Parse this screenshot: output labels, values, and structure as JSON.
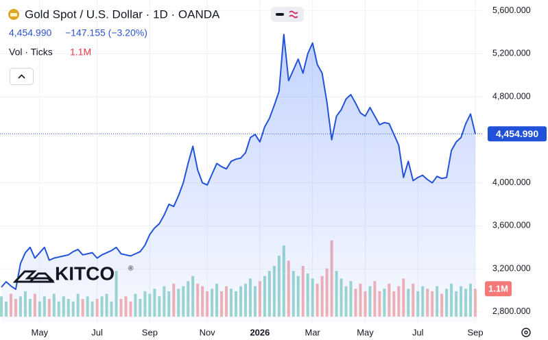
{
  "chart_data": {
    "type": "line",
    "header": {
      "title": "Gold Spot / U.S. Dollar · 1D · OANDA",
      "price": "4,454.990",
      "change": "−147.155 (−3.20%)",
      "volume_label": "Vol · Ticks",
      "volume_value": "1.1M"
    },
    "logo": "KITCO",
    "logo_mark": "®",
    "categories": [
      null,
      null,
      null,
      null,
      null,
      null,
      null,
      null,
      "May",
      null,
      null,
      null,
      null,
      null,
      null,
      null,
      null,
      null,
      null,
      null,
      "Jul",
      null,
      null,
      null,
      null,
      null,
      null,
      null,
      null,
      null,
      null,
      "Sep",
      null,
      null,
      null,
      null,
      null,
      null,
      null,
      null,
      null,
      null,
      null,
      "Nov",
      null,
      null,
      null,
      null,
      null,
      null,
      null,
      null,
      null,
      null,
      "2026",
      null,
      null,
      null,
      null,
      null,
      null,
      null,
      null,
      null,
      null,
      "Mar",
      null,
      null,
      null,
      null,
      null,
      null,
      null,
      null,
      null,
      null,
      "May",
      null,
      null,
      null,
      null,
      null,
      null,
      null,
      null,
      null,
      null,
      "Jul",
      null,
      null,
      null,
      null,
      null,
      null,
      null,
      null,
      null,
      null,
      null,
      "Sep"
    ],
    "series": [
      {
        "color": "#2151d9",
        "values": [
          3030,
          3080,
          3040,
          3010,
          3250,
          3350,
          3400,
          3300,
          3350,
          3400,
          3280,
          3300,
          3310,
          3320,
          3330,
          3360,
          3380,
          3330,
          3340,
          3350,
          3300,
          3330,
          3350,
          3370,
          3400,
          3340,
          3330,
          3320,
          3340,
          3360,
          3420,
          3520,
          3580,
          3620,
          3700,
          3800,
          3780,
          3880,
          4000,
          4180,
          4340,
          4120,
          4000,
          3980,
          4080,
          4180,
          4150,
          4130,
          4200,
          4220,
          4230,
          4280,
          4420,
          4450,
          4380,
          4520,
          4600,
          4720,
          4850,
          5380,
          4950,
          5050,
          5150,
          5020,
          5200,
          5300,
          5100,
          5020,
          4750,
          4400,
          4620,
          4680,
          4780,
          4820,
          4740,
          4650,
          4620,
          4700,
          4620,
          4540,
          4560,
          4550,
          4450,
          4350,
          4050,
          4200,
          4020,
          4050,
          4070,
          4030,
          4000,
          4060,
          4040,
          4050,
          4300,
          4380,
          4420,
          4550,
          4640,
          4454.99
        ]
      }
    ],
    "volume": {
      "axis": "y2",
      "up_color": "#9fd8cf",
      "down_color": "#f6b3b3",
      "values": [
        0.8,
        0.6,
        0.9,
        0.7,
        0.8,
        1.0,
        0.7,
        0.9,
        0.6,
        0.8,
        0.7,
        0.9,
        0.6,
        0.8,
        0.7,
        0.6,
        0.9,
        0.7,
        0.8,
        0.6,
        0.7,
        0.8,
        0.9,
        0.6,
        1.8,
        0.7,
        0.8,
        0.6,
        0.9,
        0.7,
        1.0,
        0.9,
        1.1,
        0.8,
        1.2,
        1.0,
        1.3,
        1.1,
        1.2,
        1.4,
        1.6,
        1.3,
        1.2,
        1.0,
        1.1,
        1.3,
        1.0,
        1.2,
        1.1,
        1.0,
        1.2,
        1.3,
        1.5,
        1.2,
        1.4,
        1.6,
        1.8,
        2.0,
        2.4,
        2.8,
        2.2,
        1.8,
        1.6,
        2.0,
        1.7,
        1.5,
        1.3,
        1.6,
        1.9,
        3.0,
        1.8,
        1.5,
        1.2,
        1.4,
        1.1,
        1.3,
        1.0,
        1.2,
        1.4,
        1.0,
        1.1,
        1.3,
        1.0,
        1.2,
        1.5,
        1.1,
        1.3,
        1.0,
        1.2,
        1.1,
        1.0,
        1.2,
        0.9,
        1.1,
        1.3,
        1.0,
        1.2,
        1.1,
        1.3,
        1.1
      ]
    },
    "ylim": [
      2704,
      5700
    ],
    "yticks": [
      {
        "value": 2800,
        "label": "2,800.000"
      },
      {
        "value": 3200,
        "label": "3,200.000"
      },
      {
        "value": 3600,
        "label": "3,600.000"
      },
      {
        "value": 4000,
        "label": "4,000.000"
      },
      {
        "value": 4800,
        "label": "4,800.000"
      },
      {
        "value": 5200,
        "label": "5,200.000"
      },
      {
        "value": 5600,
        "label": "5,600.000"
      }
    ],
    "y2lim": [
      0,
      12
    ],
    "grid": true
  }
}
